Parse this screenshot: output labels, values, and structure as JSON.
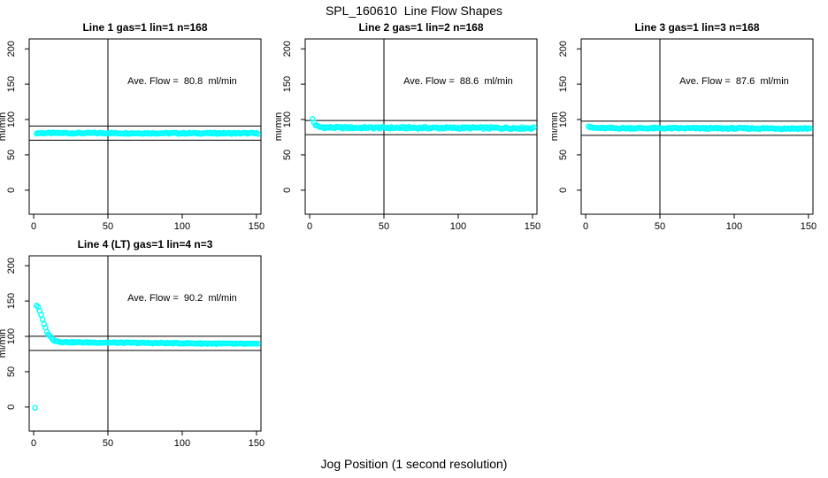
{
  "figure": {
    "background": "#ffffff",
    "axis_color": "#000000",
    "point_color": "#00ffff"
  },
  "chart_data": {
    "type": "scatter",
    "title": "SPL_160610  Line Flow Shapes",
    "xlabel": "Jog Position (1 second resolution)",
    "ylabel": "ml/min",
    "x_ticks": [
      0,
      50,
      100,
      150
    ],
    "y_ticks": [
      0,
      50,
      100,
      150,
      200
    ],
    "xlim": [
      -3,
      153
    ],
    "ylim": [
      -34,
      214
    ],
    "grid": "off",
    "marker": "open-circle",
    "marker_color": "#00ffff",
    "annotation_xy": [
      100,
      150
    ],
    "panels": [
      {
        "title": "Line 1 gas=1 lin=1 n=168",
        "annotation": "Ave. Flow =  80.8  ml/min",
        "ave_flow_ml_min": 80.8,
        "gas": 1,
        "lin": 1,
        "n": 168,
        "vline_x": 50,
        "hlines_y": [
          90.8,
          70.8
        ],
        "x_start": 2,
        "x_end": 151,
        "x_step": 1,
        "profile": [
          [
            2,
            80.8
          ],
          [
            151,
            80.5
          ]
        ],
        "jitter": 0.9,
        "extra_points": [],
        "grid_pos": {
          "row": 0,
          "col": 0
        }
      },
      {
        "title": "Line 2 gas=1 lin=2 n=168",
        "annotation": "Ave. Flow =  88.6  ml/min",
        "ave_flow_ml_min": 88.6,
        "gas": 1,
        "lin": 2,
        "n": 168,
        "vline_x": 50,
        "hlines_y": [
          98.6,
          78.6
        ],
        "x_start": 2,
        "x_end": 151,
        "x_step": 1,
        "profile": [
          [
            2,
            100.5
          ],
          [
            3,
            96
          ],
          [
            4,
            92.5
          ],
          [
            5,
            90.5
          ],
          [
            7,
            89.3
          ],
          [
            10,
            88.8
          ],
          [
            20,
            88.4
          ],
          [
            151,
            87.9
          ]
        ],
        "jitter": 1.4,
        "extra_points": [],
        "grid_pos": {
          "row": 0,
          "col": 1
        }
      },
      {
        "title": "Line 3 gas=1 lin=3 n=168",
        "annotation": "Ave. Flow =  87.6  ml/min",
        "ave_flow_ml_min": 87.6,
        "gas": 1,
        "lin": 3,
        "n": 168,
        "vline_x": 50,
        "hlines_y": [
          97.6,
          77.6
        ],
        "x_start": 2,
        "x_end": 151,
        "x_step": 1,
        "profile": [
          [
            2,
            90.5
          ],
          [
            3,
            89
          ],
          [
            5,
            88.2
          ],
          [
            10,
            87.8
          ],
          [
            151,
            87.3
          ]
        ],
        "jitter": 1.0,
        "extra_points": [],
        "grid_pos": {
          "row": 0,
          "col": 2
        }
      },
      {
        "title": "Line 4 (LT) gas=1 lin=4 n=3",
        "annotation": "Ave. Flow =  90.2  ml/min",
        "ave_flow_ml_min": 90.2,
        "gas": 1,
        "lin": 4,
        "n": 3,
        "vline_x": 50,
        "hlines_y": [
          100.2,
          80.2
        ],
        "x_start": 2,
        "x_end": 151,
        "x_step": 1,
        "profile": [
          [
            2,
            144
          ],
          [
            3,
            141
          ],
          [
            4,
            136
          ],
          [
            5,
            130
          ],
          [
            6,
            124
          ],
          [
            7,
            118
          ],
          [
            8,
            112
          ],
          [
            9,
            107
          ],
          [
            10,
            103
          ],
          [
            11,
            100
          ],
          [
            12,
            98
          ],
          [
            13,
            96
          ],
          [
            14,
            94.5
          ],
          [
            15,
            93.5
          ],
          [
            16,
            93
          ],
          [
            18,
            92.3
          ],
          [
            20,
            92
          ],
          [
            25,
            91.7
          ],
          [
            35,
            91.4
          ],
          [
            60,
            91
          ],
          [
            100,
            90.3
          ],
          [
            151,
            89.3
          ]
        ],
        "jitter": 0.7,
        "extra_points": [
          [
            1,
            -1
          ]
        ],
        "grid_pos": {
          "row": 1,
          "col": 0
        }
      }
    ]
  }
}
